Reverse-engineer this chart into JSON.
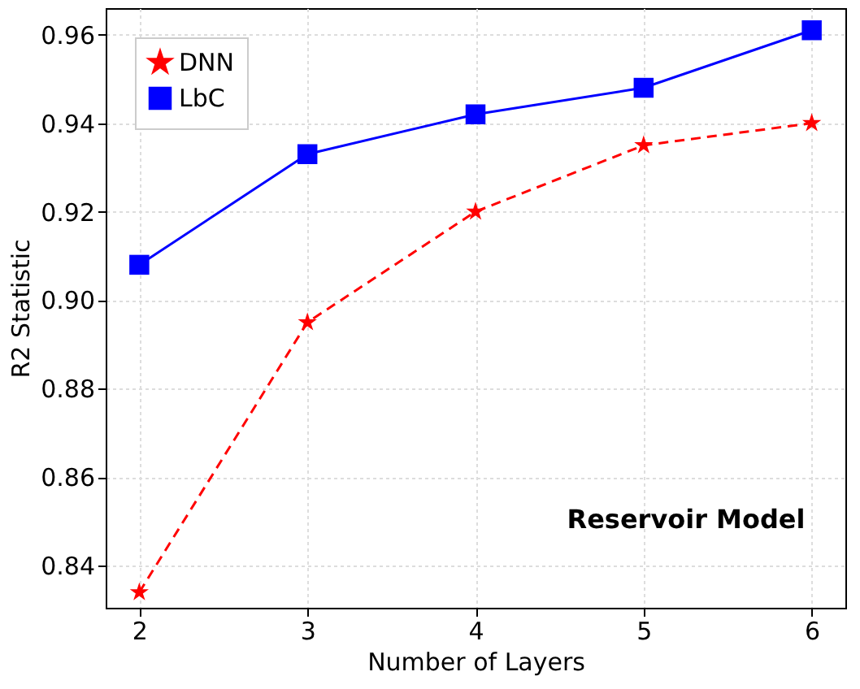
{
  "chart_data": {
    "type": "line",
    "x": [
      2,
      3,
      4,
      5,
      6
    ],
    "xlabel": "Number of Layers",
    "ylabel": "R2 Statistic",
    "xlim": [
      1.8,
      6.2
    ],
    "xticks": [
      2,
      3,
      4,
      5,
      6
    ],
    "ylim": [
      0.8305,
      0.966
    ],
    "yticks": [
      0.84,
      0.86,
      0.88,
      {
        "value": 0.9,
        "label": "0.90"
      },
      0.92,
      0.94,
      0.96
    ],
    "grid": true,
    "legend": "top left",
    "annotations": [
      "Reservoir Model"
    ],
    "series": [
      {
        "name": "DNN",
        "color": "#ff0000",
        "marker": "star",
        "line_style": "dashed",
        "values": [
          0.834,
          0.895,
          0.92,
          0.935,
          0.94
        ]
      },
      {
        "name": "LbC",
        "color": "#0000ff",
        "marker": "square",
        "line_style": "solid",
        "values": [
          0.908,
          0.933,
          0.942,
          0.948,
          0.961
        ]
      }
    ]
  }
}
